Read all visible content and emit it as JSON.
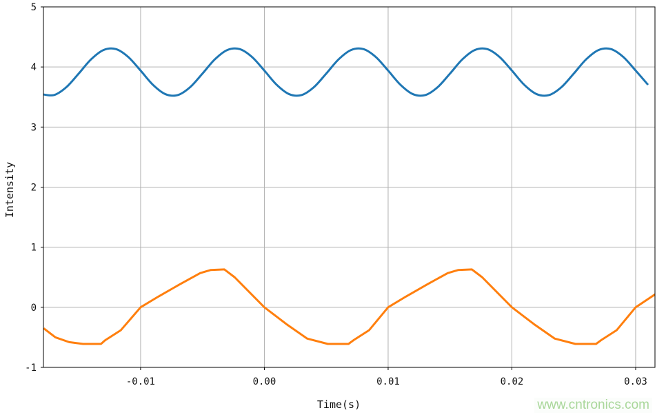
{
  "chart_data": {
    "type": "line",
    "title": "",
    "xlabel": "Time(s)",
    "ylabel": "Intensity",
    "xlim": [
      -0.01785,
      0.03156
    ],
    "ylim": [
      -1,
      5
    ],
    "grid": true,
    "legend": "none",
    "xticks": [
      -0.01,
      0.0,
      0.01,
      0.02,
      0.03
    ],
    "xtick_labels": [
      "-0.01",
      "0.00",
      "0.01",
      "0.02",
      "0.03"
    ],
    "yticks": [
      -1,
      0,
      1,
      2,
      3,
      4,
      5
    ],
    "ytick_labels": [
      "-1",
      "0",
      "1",
      "2",
      "3",
      "4",
      "5"
    ],
    "series": [
      {
        "color": "#1f77b4",
        "x": [
          -0.018,
          -0.017,
          -0.016,
          -0.015,
          -0.014,
          -0.013,
          -0.012,
          -0.011,
          -0.01,
          -0.009,
          -0.008,
          -0.007,
          -0.006,
          -0.005,
          -0.004,
          -0.003,
          -0.002,
          -0.001,
          0.0,
          0.001,
          0.002,
          0.003,
          0.004,
          0.005,
          0.006,
          0.007,
          0.008,
          0.009,
          0.01,
          0.011,
          0.012,
          0.013,
          0.014,
          0.015,
          0.016,
          0.017,
          0.018,
          0.019,
          0.02,
          0.021,
          0.022,
          0.023,
          0.024,
          0.025,
          0.026,
          0.027,
          0.028,
          0.029,
          0.03,
          0.031
        ],
        "y": [
          3.548,
          3.532,
          3.663,
          3.89,
          4.127,
          4.282,
          4.298,
          4.167,
          3.94,
          3.703,
          3.548,
          3.532,
          3.663,
          3.89,
          4.127,
          4.282,
          4.298,
          4.167,
          3.94,
          3.703,
          3.548,
          3.532,
          3.663,
          3.89,
          4.127,
          4.282,
          4.298,
          4.167,
          3.94,
          3.703,
          3.548,
          3.532,
          3.663,
          3.89,
          4.127,
          4.282,
          4.298,
          4.167,
          3.94,
          3.703,
          3.548,
          3.532,
          3.663,
          3.89,
          4.127,
          4.282,
          4.298,
          4.167,
          3.94,
          3.703
        ]
      },
      {
        "color": "#ff7f0e",
        "x": [
          -0.01783,
          -0.01688,
          -0.01577,
          -0.01465,
          -0.0132,
          -0.01287,
          -0.01159,
          -0.01,
          -0.00855,
          -0.00685,
          -0.00518,
          -0.00435,
          -0.00323,
          -0.0024,
          0.0,
          0.00178,
          0.00345,
          0.00513,
          0.0068,
          0.00719,
          0.00847,
          0.01,
          0.01145,
          0.01315,
          0.01482,
          0.01565,
          0.01677,
          0.0176,
          0.02,
          0.02178,
          0.02345,
          0.02513,
          0.0268,
          0.02719,
          0.02847,
          0.03,
          0.0316
        ],
        "y": [
          -0.35,
          -0.5,
          -0.58,
          -0.61,
          -0.61,
          -0.55,
          -0.38,
          0.0,
          0.18,
          0.38,
          0.57,
          0.62,
          0.63,
          0.5,
          0.0,
          -0.28,
          -0.52,
          -0.61,
          -0.61,
          -0.55,
          -0.38,
          0.0,
          0.18,
          0.38,
          0.57,
          0.62,
          0.63,
          0.5,
          0.0,
          -0.28,
          -0.52,
          -0.61,
          -0.61,
          -0.55,
          -0.38,
          0.0,
          0.22
        ]
      }
    ]
  },
  "watermark": "www.cntronics.com"
}
